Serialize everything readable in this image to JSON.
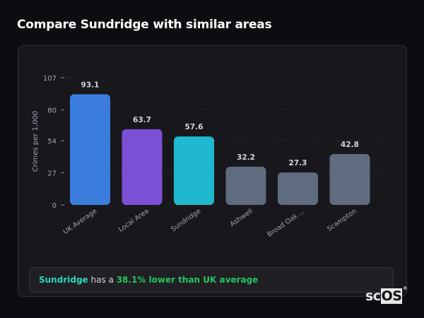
{
  "title": "Compare Sundridge with similar areas",
  "chart_data": {
    "type": "bar",
    "title": "",
    "xlabel": "",
    "ylabel": "Crimes per 1,000",
    "ylim": [
      0,
      107
    ],
    "yticks": [
      0,
      27,
      54,
      80,
      107
    ],
    "grid": true,
    "categories": [
      "UK Average",
      "Local Area",
      "Sundridge",
      "Ashwell",
      "Broad Oak ...",
      "Scampton"
    ],
    "values": [
      93.1,
      63.7,
      57.6,
      32.2,
      27.3,
      42.8
    ],
    "data_labels": [
      "93.1",
      "63.7",
      "57.6",
      "32.2",
      "27.3",
      "42.8"
    ],
    "colors": [
      "#3b7ddd",
      "#7b4fd6",
      "#20b8cf",
      "#5f6b7f",
      "#5f6b7f",
      "#5f6b7f"
    ]
  },
  "callout": {
    "area": "Sundridge",
    "text1": " has a ",
    "highlight": "38.1% lower than UK average"
  },
  "logo": {
    "text": "sc",
    "boxed": "OS",
    "mark": "®"
  }
}
